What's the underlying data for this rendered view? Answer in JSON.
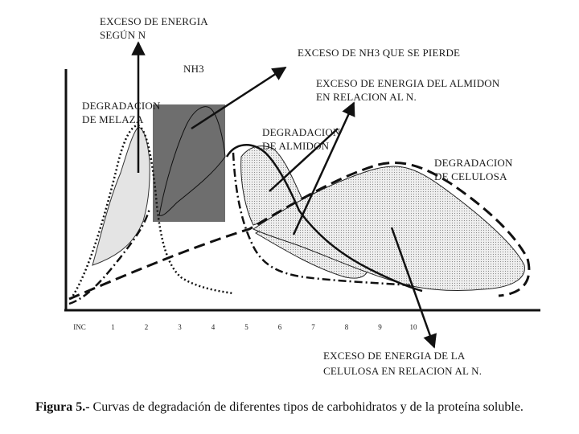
{
  "labels": {
    "exceso_energia_n_1": "EXCESO DE ENERGIA",
    "exceso_energia_n_2": "SEGÚN N",
    "exceso_nh3": "EXCESO DE NH3  QUE SE PIERDE",
    "nh3": "NH3",
    "exceso_almidon_1": "EXCESO DE ENERGIA DEL ALMIDON",
    "exceso_almidon_2": "EN RELACION AL N.",
    "degradacion_melaza_1": "DEGRADACION",
    "degradacion_melaza_2": "DE MELAZA",
    "degradacion_almidon_1": "DEGRADACION",
    "degradacion_almidon_2": "DE ALMIDON",
    "degradacion_celulosa_1": "DEGRADACION",
    "degradacion_celulosa_2": "DE  CELULOSA",
    "exceso_celulosa_1": "EXCESO DE ENERGIA DE LA",
    "exceso_celulosa_2": "CELULOSA EN RELACION AL N."
  },
  "x_ticks": [
    "INC",
    "1",
    "2",
    "3",
    "4",
    "5",
    "6",
    "7",
    "8",
    "9",
    "10"
  ],
  "caption": {
    "prefix": "Figura 5.-",
    "text": " Curvas de degradación de diferentes tipos de carbohidratos y de la  proteína soluble."
  },
  "colors": {
    "ink": "#111111",
    "nh3_box": "#6e6e6e",
    "light_fill": "#e6e6e6",
    "dot_fill": "#dcdcdc"
  }
}
